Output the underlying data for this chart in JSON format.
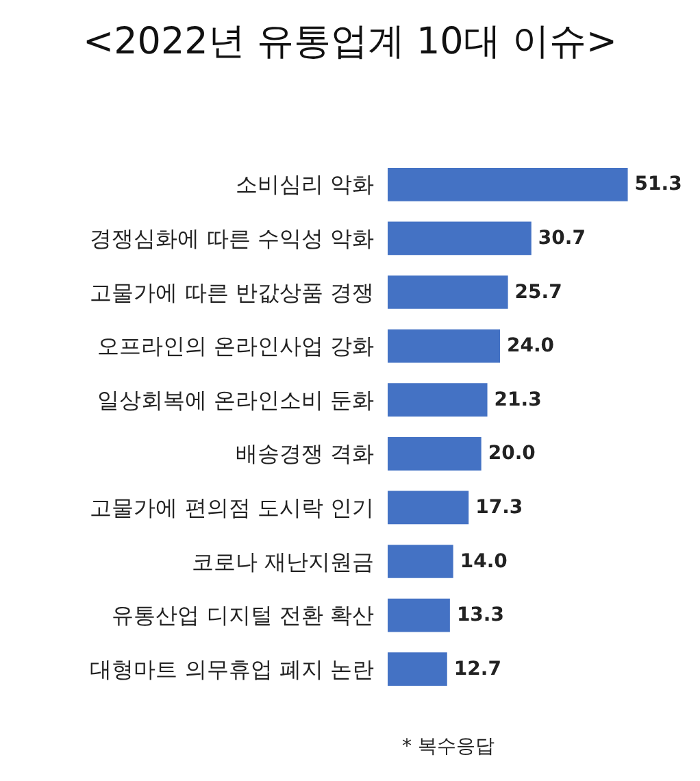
{
  "chart_data": {
    "type": "bar",
    "orientation": "horizontal",
    "title": "<2022년 유통업계 10대 이슈>",
    "categories": [
      "소비심리 악화",
      "경쟁심화에 따른 수익성 악화",
      "고물가에 따른 반값상품 경쟁",
      "오프라인의 온라인사업 강화",
      "일상회복에 온라인소비 둔화",
      "배송경쟁 격화",
      "고물가에 편의점 도시락 인기",
      "코로나 재난지원금",
      "유통산업 디지털 전환 확산",
      "대형마트 의무휴업 폐지 논란"
    ],
    "values": [
      51.3,
      30.7,
      25.7,
      24.0,
      21.3,
      20.0,
      17.3,
      14.0,
      13.3,
      12.7
    ],
    "value_labels": [
      "51.3",
      "30.7",
      "25.7",
      "24.0",
      "21.3",
      "20.0",
      "17.3",
      "14.0",
      "13.3",
      "12.7"
    ],
    "color": "#4472c4",
    "annotations": [
      "* 복수응답"
    ]
  }
}
